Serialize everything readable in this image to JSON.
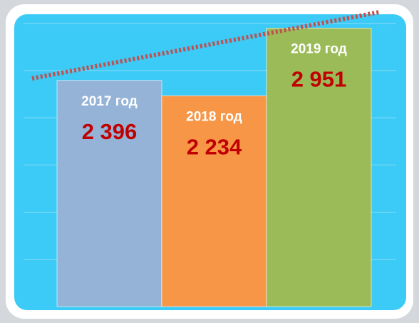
{
  "chart_data": {
    "type": "bar",
    "categories": [
      "2017 год",
      "2018 год",
      "2019 год"
    ],
    "values": [
      2396,
      2234,
      2951
    ],
    "value_labels": [
      "2 396",
      "2 234",
      "2 951"
    ],
    "colors": [
      "#95b3d7",
      "#f79646",
      "#9bbb59"
    ],
    "ylim": [
      0,
      3100
    ],
    "yticks": [
      500,
      1000,
      1500,
      2000,
      2500,
      3000
    ],
    "grid": true
  }
}
